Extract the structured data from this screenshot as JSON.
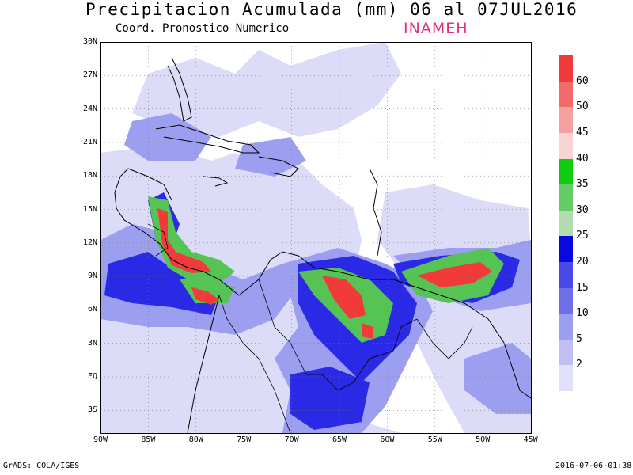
{
  "header": {
    "title": "Precipitacion Acumulada (mm) 06 al 07JUL2016",
    "subtitle": "Coord. Pronostico Numerico",
    "agency": "INAMEH"
  },
  "map": {
    "extent": {
      "lon_min": -90,
      "lon_max": -45,
      "lat_min": -5,
      "lat_max": 30
    },
    "lat_labels": [
      "30N",
      "27N",
      "24N",
      "21N",
      "18N",
      "15N",
      "12N",
      "9N",
      "6N",
      "3N",
      "EQ",
      "3S"
    ],
    "lon_labels": [
      "90W",
      "85W",
      "80W",
      "75W",
      "70W",
      "65W",
      "60W",
      "55W",
      "50W",
      "45W"
    ],
    "grid": "dotted"
  },
  "colorbar": {
    "labels": [
      "2",
      "5",
      "10",
      "15",
      "20",
      "25",
      "30",
      "35",
      "40",
      "45",
      "50",
      "60"
    ],
    "colors": [
      "#e0e0fa",
      "#c0c0f2",
      "#9c9ef0",
      "#6e6ee6",
      "#4a4ae8",
      "#0808e0",
      "#b0dcb0",
      "#66cc66",
      "#10cc10",
      "#f8d4d4",
      "#f4a0a0",
      "#f26a6a",
      "#f23a3a"
    ]
  },
  "footer": {
    "left": "GrADS: COLA/IGES",
    "right": "2016-07-06-01:38"
  }
}
